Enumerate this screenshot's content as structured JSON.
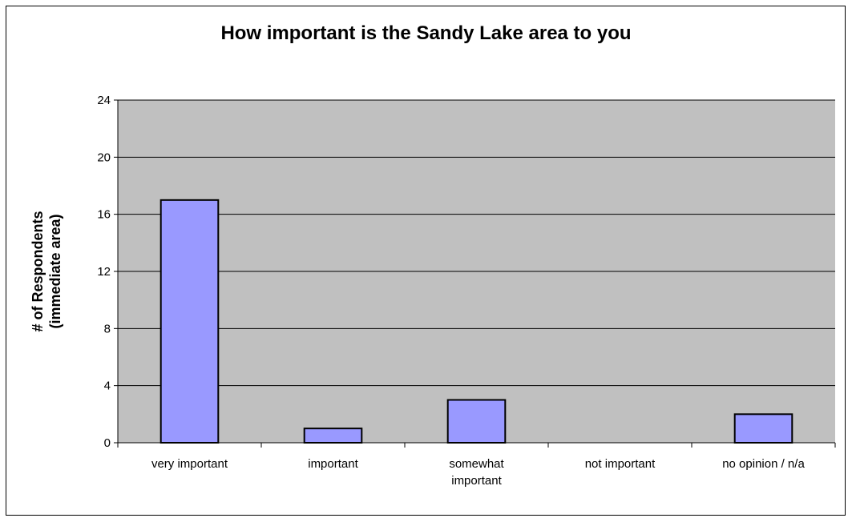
{
  "chart_data": {
    "type": "bar",
    "title": "How important is the Sandy Lake area to you",
    "ylabel_lines": [
      "# of Respondents",
      "(immediate area)"
    ],
    "xlabel": "",
    "categories": [
      [
        "very important"
      ],
      [
        "important"
      ],
      [
        "somewhat",
        "important"
      ],
      [
        "not important"
      ],
      [
        "no opinion / n/a"
      ]
    ],
    "values": [
      17,
      1,
      3,
      0,
      2
    ],
    "ylim": [
      0,
      24
    ],
    "yticks": [
      0,
      4,
      8,
      12,
      16,
      20,
      24
    ],
    "grid": true,
    "legend": "none",
    "colors": {
      "plot_background": "#c0c0c0",
      "bar_fill": "#9999ff",
      "bar_stroke": "#000000",
      "gridline": "#000000"
    }
  }
}
